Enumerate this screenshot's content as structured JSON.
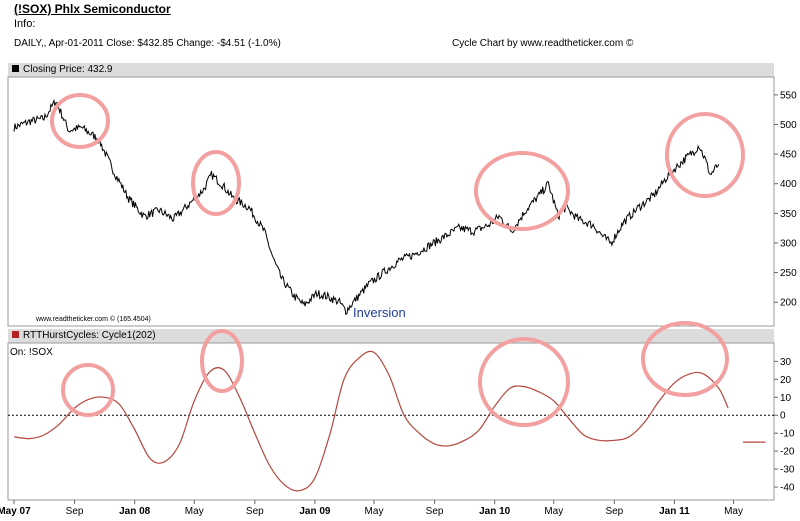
{
  "header": {
    "title": "(!SOX) Phlx Semiconductor",
    "info_label": "Info:",
    "daily_line": "DAILY,, Apr-01-2011  Close: $432.85  Change: -$4.51  (-1.0%)",
    "credit": "Cycle Chart by www.readtheticker.com ©"
  },
  "chart_data": [
    {
      "type": "line",
      "panel_label": "Closing Price: 432.9",
      "legend_color": "#000000",
      "series_color": "#000000",
      "ylim": [
        170,
        570
      ],
      "yticks": [
        550,
        500,
        450,
        400,
        350,
        300,
        250,
        200
      ],
      "xlim": [
        "2007-05-01",
        "2011-07-10"
      ],
      "watermark": "www.readtheticker.com © (165.4504)",
      "annotation": "Inversion",
      "highlight_color": "#f2a0a0",
      "highlighted_dates": [
        "2007-09-12",
        "2008-06-15",
        "2010-03-15",
        "2011-02-25"
      ],
      "x": [
        "2007-05-01",
        "2007-06-01",
        "2007-07-01",
        "2007-07-25",
        "2007-08-20",
        "2007-09-15",
        "2007-10-20",
        "2007-11-20",
        "2007-12-20",
        "2008-01-20",
        "2008-02-20",
        "2008-03-20",
        "2008-04-20",
        "2008-05-20",
        "2008-06-05",
        "2008-06-25",
        "2008-07-20",
        "2008-08-20",
        "2008-09-20",
        "2008-10-10",
        "2008-10-25",
        "2008-11-20",
        "2008-12-10",
        "2009-01-05",
        "2009-01-25",
        "2009-02-20",
        "2009-03-05",
        "2009-03-25",
        "2009-04-20",
        "2009-05-20",
        "2009-06-20",
        "2009-07-20",
        "2009-08-20",
        "2009-09-20",
        "2009-10-20",
        "2009-11-20",
        "2009-12-20",
        "2010-01-10",
        "2010-02-05",
        "2010-03-05",
        "2010-04-01",
        "2010-04-20",
        "2010-05-10",
        "2010-05-25",
        "2010-06-20",
        "2010-07-20",
        "2010-08-10",
        "2010-08-25",
        "2010-09-20",
        "2010-10-20",
        "2010-11-20",
        "2010-12-20",
        "2011-01-20",
        "2011-02-10",
        "2011-02-20",
        "2011-03-05",
        "2011-03-15",
        "2011-04-01"
      ],
      "values": [
        495,
        505,
        510,
        540,
        490,
        495,
        475,
        420,
        375,
        345,
        355,
        340,
        365,
        390,
        415,
        400,
        375,
        360,
        320,
        270,
        240,
        210,
        195,
        215,
        210,
        200,
        185,
        205,
        230,
        250,
        270,
        280,
        295,
        310,
        325,
        320,
        330,
        345,
        320,
        355,
        380,
        400,
        345,
        360,
        340,
        330,
        310,
        300,
        335,
        360,
        380,
        415,
        440,
        455,
        465,
        440,
        415,
        433
      ]
    },
    {
      "type": "line",
      "panel_label": "RTTHurstCycles: Cycle1(202)",
      "sub_label": "On: !SOX",
      "legend_color": "#b22222",
      "series_color": "#b5453e",
      "ylim": [
        -45,
        38
      ],
      "yticks": [
        30,
        20,
        10,
        0,
        -10,
        -20,
        -30,
        -40
      ],
      "zero_line": 0,
      "highlight_color": "#f2a0a0",
      "highlighted_dates": [
        "2007-09-12",
        "2008-06-10",
        "2010-03-10",
        "2011-02-10"
      ],
      "projection": {
        "x": [
          "2011-05-20",
          "2011-07-05"
        ],
        "value": -15
      },
      "x": [
        "2007-05-01",
        "2007-06-01",
        "2007-07-01",
        "2007-08-01",
        "2007-09-01",
        "2007-10-01",
        "2007-11-01",
        "2007-12-01",
        "2008-01-01",
        "2008-02-01",
        "2008-03-01",
        "2008-04-01",
        "2008-05-01",
        "2008-06-01",
        "2008-07-01",
        "2008-08-01",
        "2008-09-01",
        "2008-10-01",
        "2008-11-01",
        "2008-12-01",
        "2009-01-01",
        "2009-02-01",
        "2009-03-01",
        "2009-04-01",
        "2009-05-01",
        "2009-06-01",
        "2009-07-01",
        "2009-08-01",
        "2009-09-01",
        "2009-10-01",
        "2009-11-01",
        "2009-12-01",
        "2010-01-01",
        "2010-02-01",
        "2010-03-01",
        "2010-04-01",
        "2010-05-01",
        "2010-06-01",
        "2010-07-01",
        "2010-08-01",
        "2010-09-01",
        "2010-10-01",
        "2010-11-01",
        "2010-12-01",
        "2011-01-01",
        "2011-02-01",
        "2011-03-01",
        "2011-04-01",
        "2011-04-20"
      ],
      "values": [
        -12,
        -13,
        -11,
        -5,
        4,
        9,
        10,
        6,
        -8,
        -24,
        -26,
        -16,
        8,
        24,
        25,
        10,
        -10,
        -28,
        -39,
        -42,
        -35,
        -10,
        20,
        32,
        35,
        22,
        0,
        -10,
        -16,
        -17,
        -14,
        -8,
        5,
        15,
        16,
        13,
        8,
        -2,
        -11,
        -14,
        -14,
        -12,
        -4,
        8,
        18,
        23,
        23,
        15,
        4
      ]
    }
  ],
  "x_axis": {
    "ticks": [
      {
        "date": "2007-05-01",
        "label": "May 07",
        "bold": true
      },
      {
        "date": "2007-09-01",
        "label": "Sep",
        "bold": false
      },
      {
        "date": "2008-01-01",
        "label": "Jan 08",
        "bold": true
      },
      {
        "date": "2008-05-01",
        "label": "May",
        "bold": false
      },
      {
        "date": "2008-09-01",
        "label": "Sep",
        "bold": false
      },
      {
        "date": "2009-01-01",
        "label": "Jan 09",
        "bold": true
      },
      {
        "date": "2009-05-01",
        "label": "May",
        "bold": false
      },
      {
        "date": "2009-09-01",
        "label": "Sep",
        "bold": false
      },
      {
        "date": "2010-01-01",
        "label": "Jan 10",
        "bold": true
      },
      {
        "date": "2010-05-01",
        "label": "May",
        "bold": false
      },
      {
        "date": "2010-09-01",
        "label": "Sep",
        "bold": false
      },
      {
        "date": "2011-01-01",
        "label": "Jan 11",
        "bold": true
      },
      {
        "date": "2011-05-01",
        "label": "May",
        "bold": false
      }
    ]
  }
}
